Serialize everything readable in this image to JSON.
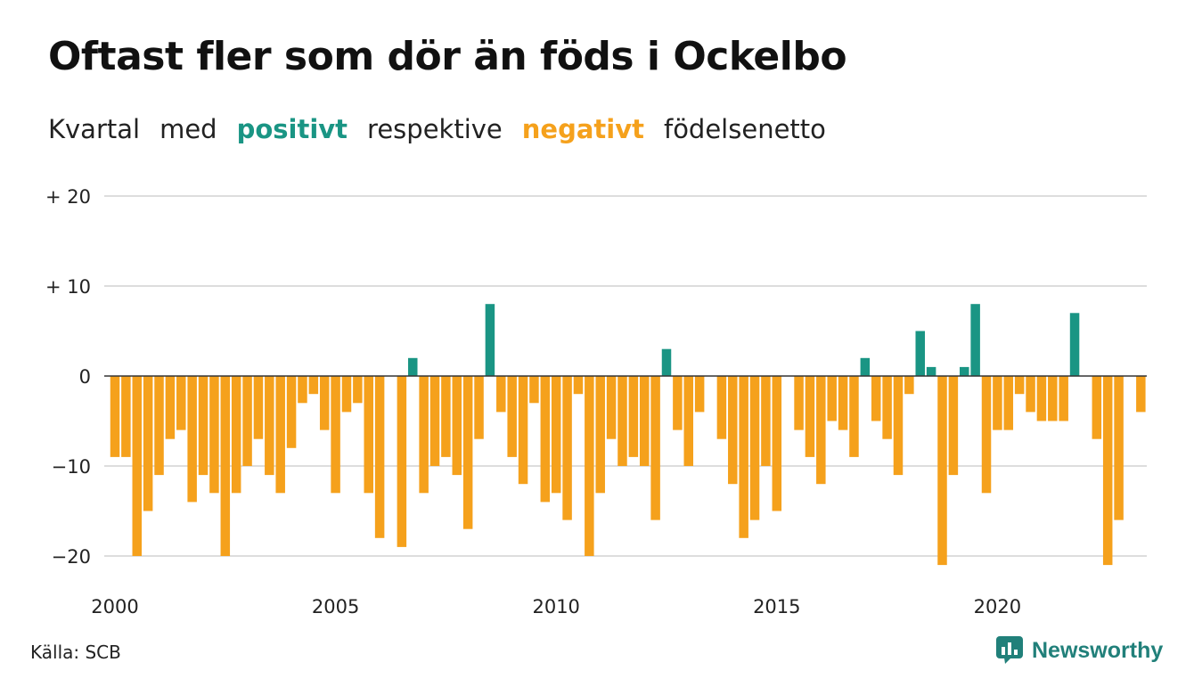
{
  "header": {
    "title": "Oftast fler som dör än föds i Ockelbo",
    "subtitle": {
      "part1": "Kvartal",
      "part2": "med",
      "positive_word": "positivt",
      "part3": "respektive",
      "negative_word": "negativt",
      "part4": "födelsenetto"
    }
  },
  "footer": {
    "source": "Källa: SCB",
    "brand": "Newsworthy",
    "brand_icon": "bar-chart-speech-icon"
  },
  "colors": {
    "positive": "#1a9584",
    "negative": "#f5a11c",
    "grid": "#dddddd",
    "text": "#222222",
    "brand": "#21807a"
  },
  "chart_data": {
    "type": "bar",
    "title": "Oftast fler som dör än föds i Ockelbo",
    "subtitle": "Kvartal med positivt respektive negativt födelsenetto",
    "x_start": "2000 Q1",
    "x_ticks": [
      "2000",
      "2005",
      "2010",
      "2015",
      "2020"
    ],
    "y_ticks": [
      {
        "value": 20,
        "label": "+ 20"
      },
      {
        "value": 10,
        "label": "+ 10"
      },
      {
        "value": 0,
        "label": "0"
      },
      {
        "value": -10,
        "label": "−10"
      },
      {
        "value": -20,
        "label": "−20"
      }
    ],
    "ylim": [
      -23,
      21
    ],
    "grid": true,
    "legend": "none",
    "values": [
      -9,
      -9,
      -20,
      -15,
      -11,
      -7,
      -6,
      -14,
      -11,
      -13,
      -20,
      -13,
      -10,
      -7,
      -11,
      -13,
      -8,
      -3,
      -2,
      -6,
      -13,
      -4,
      -3,
      -13,
      -18,
      0,
      -19,
      2,
      -13,
      -10,
      -9,
      -11,
      -17,
      -7,
      8,
      -4,
      -9,
      -12,
      -3,
      -14,
      -13,
      -16,
      -2,
      -20,
      -13,
      -7,
      -10,
      -9,
      -10,
      -16,
      3,
      -6,
      -10,
      -4,
      0,
      -7,
      -12,
      -18,
      -16,
      -10,
      -15,
      0,
      -6,
      -9,
      -12,
      -5,
      -6,
      -9,
      2,
      -5,
      -7,
      -11,
      -2,
      5,
      1,
      -21,
      -11,
      1,
      8,
      -13,
      -6,
      -6,
      -2,
      -4,
      -5,
      -5,
      -5,
      7,
      0,
      -7,
      -21,
      -16,
      0,
      -4
    ]
  }
}
